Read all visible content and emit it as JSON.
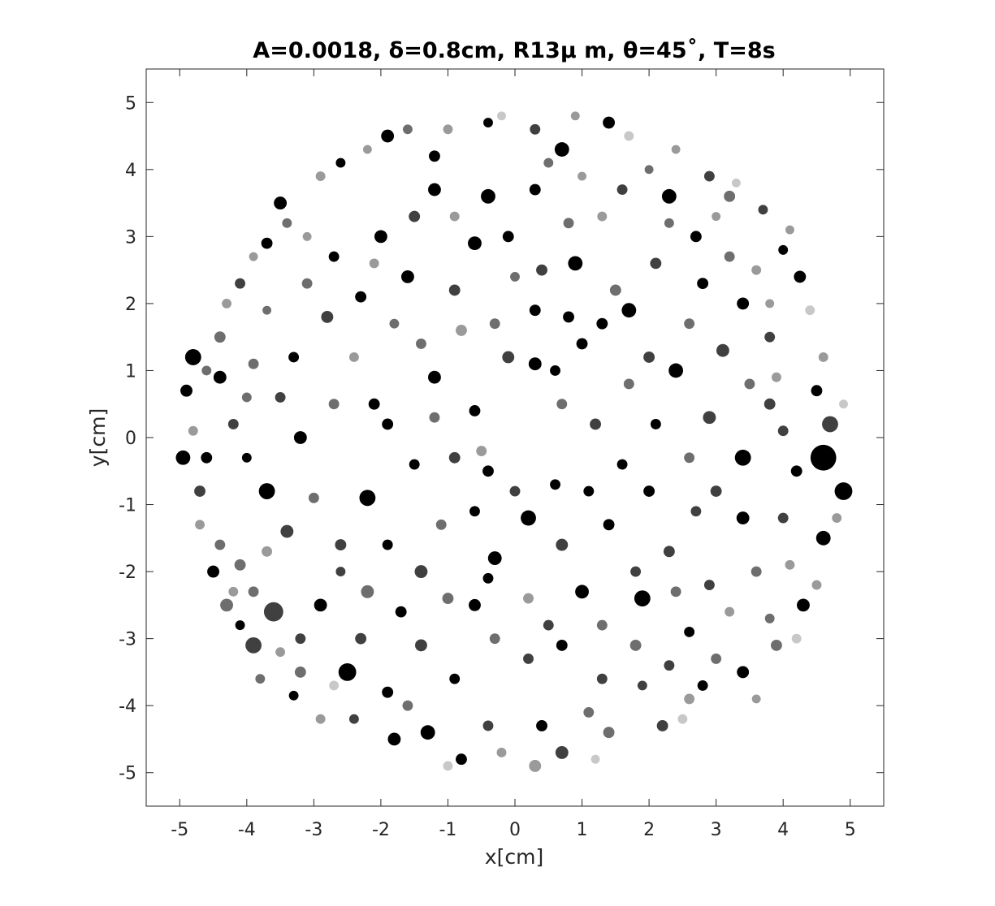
{
  "chart_data": {
    "type": "scatter",
    "title": "A=0.0018, δ=0.8cm, R13μ m, θ=45˚, T=8s",
    "xlabel": "x[cm]",
    "ylabel": "y[cm]",
    "xlim": [
      -5.5,
      5.5
    ],
    "ylim": [
      -5.5,
      5.5
    ],
    "xticks": [
      -5,
      -4,
      -3,
      -2,
      -1,
      0,
      1,
      2,
      3,
      4,
      5
    ],
    "yticks": [
      -5,
      -4,
      -3,
      -2,
      -1,
      0,
      1,
      2,
      3,
      4,
      5
    ],
    "xtick_labels": [
      "-5",
      "-4",
      "-3",
      "-2",
      "-1",
      "0",
      "1",
      "2",
      "3",
      "4",
      "5"
    ],
    "ytick_labels": [
      "-5",
      "-4",
      "-3",
      "-2",
      "-1",
      "0",
      "1",
      "2",
      "3",
      "4",
      "5"
    ],
    "grid": false,
    "legend": "none",
    "region": {
      "shape": "disk",
      "center": [
        0,
        0
      ],
      "radius": 5.0
    },
    "colormap": [
      "#000000",
      "#404040",
      "#6e6e6e",
      "#9a9a9a",
      "#c8c8c8",
      "#e6e6e6"
    ],
    "points": [
      [
        -4.8,
        1.2,
        2,
        0
      ],
      [
        -4.9,
        0.7,
        1.5,
        0
      ],
      [
        -4.95,
        -0.3,
        1.8,
        0
      ],
      [
        -4.7,
        -0.8,
        1.4,
        1
      ],
      [
        -4.5,
        -2.0,
        1.5,
        0
      ],
      [
        -4.3,
        -2.5,
        1.6,
        2
      ],
      [
        -4.1,
        -2.8,
        1.2,
        0
      ],
      [
        -3.9,
        -3.1,
        2,
        1
      ],
      [
        -3.6,
        -2.6,
        2.4,
        1
      ],
      [
        -3.2,
        -3.5,
        1.4,
        2
      ],
      [
        -3.3,
        -3.85,
        1.2,
        0
      ],
      [
        -2.5,
        -3.5,
        2.2,
        0
      ],
      [
        -1.8,
        -4.5,
        1.6,
        0
      ],
      [
        -1.3,
        -4.4,
        1.8,
        0
      ],
      [
        -0.8,
        -4.8,
        1.4,
        0
      ],
      [
        0.3,
        -4.9,
        1.5,
        3
      ],
      [
        0.7,
        -4.7,
        1.6,
        1
      ],
      [
        1.4,
        -4.4,
        1.4,
        2
      ],
      [
        2.2,
        -4.3,
        1.4,
        1
      ],
      [
        2.8,
        -3.7,
        1.3,
        0
      ],
      [
        3.4,
        -3.5,
        1.5,
        0
      ],
      [
        3.9,
        -3.1,
        1.4,
        2
      ],
      [
        4.3,
        -2.5,
        1.6,
        0
      ],
      [
        4.6,
        -1.5,
        1.8,
        0
      ],
      [
        4.9,
        -0.8,
        2.2,
        0
      ],
      [
        4.6,
        -0.3,
        3.2,
        0
      ],
      [
        4.7,
        0.2,
        2,
        1
      ],
      [
        4.5,
        0.7,
        1.4,
        0
      ],
      [
        4.25,
        2.4,
        1.5,
        0
      ],
      [
        4.0,
        2.8,
        1.2,
        0
      ],
      [
        3.7,
        3.4,
        1.2,
        1
      ],
      [
        3.2,
        3.6,
        1.4,
        2
      ],
      [
        2.9,
        3.9,
        1.3,
        1
      ],
      [
        2.3,
        3.6,
        1.8,
        0
      ],
      [
        1.4,
        4.7,
        1.5,
        0
      ],
      [
        0.7,
        4.3,
        1.8,
        0
      ],
      [
        0.3,
        4.6,
        1.3,
        1
      ],
      [
        -0.4,
        4.7,
        1.2,
        0
      ],
      [
        -1.2,
        4.2,
        1.4,
        0
      ],
      [
        -1.9,
        4.5,
        1.6,
        0
      ],
      [
        -2.6,
        4.1,
        1.2,
        0
      ],
      [
        -3.5,
        3.5,
        1.6,
        0
      ],
      [
        -3.7,
        2.9,
        1.4,
        0
      ],
      [
        -4.1,
        2.3,
        1.3,
        1
      ],
      [
        -4.4,
        1.5,
        1.4,
        2
      ],
      [
        -3.7,
        -0.8,
        2,
        0
      ],
      [
        -3.2,
        0.0,
        1.6,
        0
      ],
      [
        -2.2,
        -0.9,
        2,
        0
      ],
      [
        -1.9,
        0.2,
        1.4,
        0
      ],
      [
        -1.2,
        0.9,
        1.6,
        0
      ],
      [
        -0.6,
        0.4,
        1.4,
        0
      ],
      [
        -0.1,
        1.2,
        1.5,
        1
      ],
      [
        0.3,
        1.1,
        1.6,
        0
      ],
      [
        0.6,
        1.0,
        1.3,
        0
      ],
      [
        1.0,
        1.4,
        1.4,
        0
      ],
      [
        1.7,
        0.8,
        1.3,
        2
      ],
      [
        2.4,
        1.0,
        1.8,
        0
      ],
      [
        2.9,
        0.3,
        1.6,
        1
      ],
      [
        3.4,
        -0.3,
        2,
        0
      ],
      [
        3.8,
        0.5,
        1.4,
        1
      ],
      [
        -0.9,
        -0.3,
        1.4,
        1
      ],
      [
        -0.4,
        -0.5,
        1.4,
        0
      ],
      [
        0.2,
        -1.2,
        1.9,
        0
      ],
      [
        0.7,
        -1.6,
        1.5,
        1
      ],
      [
        1.0,
        -2.3,
        1.7,
        0
      ],
      [
        1.4,
        -1.3,
        1.4,
        0
      ],
      [
        1.9,
        -2.4,
        2,
        0
      ],
      [
        2.3,
        -1.7,
        1.4,
        1
      ],
      [
        2.6,
        -2.9,
        1.3,
        0
      ],
      [
        2.9,
        -2.2,
        1.3,
        1
      ],
      [
        3.4,
        -1.2,
        1.6,
        0
      ],
      [
        3.6,
        -2.0,
        1.3,
        2
      ],
      [
        -0.3,
        -1.8,
        1.7,
        0
      ],
      [
        -0.6,
        -2.5,
        1.5,
        0
      ],
      [
        -1.4,
        -2.0,
        1.6,
        1
      ],
      [
        -1.7,
        -2.6,
        1.4,
        0
      ],
      [
        -2.2,
        -2.3,
        1.6,
        2
      ],
      [
        -2.9,
        -2.5,
        1.6,
        0
      ],
      [
        -3.4,
        -1.4,
        1.6,
        1
      ],
      [
        -4.1,
        -1.9,
        1.4,
        2
      ],
      [
        -4.6,
        -0.3,
        1.4,
        0
      ],
      [
        -4.2,
        0.2,
        1.3,
        1
      ],
      [
        -4.4,
        0.9,
        1.6,
        0
      ],
      [
        -3.9,
        1.1,
        1.3,
        2
      ],
      [
        -3.3,
        1.2,
        1.3,
        0
      ],
      [
        -2.8,
        1.8,
        1.5,
        1
      ],
      [
        -2.3,
        2.1,
        1.4,
        0
      ],
      [
        -1.6,
        2.4,
        1.6,
        0
      ],
      [
        -0.9,
        2.2,
        1.4,
        1
      ],
      [
        -0.6,
        2.9,
        1.7,
        0
      ],
      [
        -0.1,
        3.0,
        1.4,
        0
      ],
      [
        0.4,
        2.5,
        1.4,
        1
      ],
      [
        0.9,
        2.6,
        1.8,
        0
      ],
      [
        1.5,
        2.2,
        1.4,
        2
      ],
      [
        1.7,
        1.9,
        1.8,
        0
      ],
      [
        2.1,
        2.6,
        1.4,
        1
      ],
      [
        2.8,
        2.3,
        1.4,
        0
      ],
      [
        3.1,
        1.3,
        1.6,
        1
      ],
      [
        3.4,
        2.0,
        1.5,
        0
      ],
      [
        3.8,
        1.5,
        1.3,
        1
      ],
      [
        -3.2,
        -3.0,
        1.3,
        1
      ],
      [
        -2.3,
        -3.0,
        1.4,
        1
      ],
      [
        -1.9,
        -3.8,
        1.4,
        0
      ],
      [
        -1.4,
        -3.1,
        1.5,
        1
      ],
      [
        -0.9,
        -3.6,
        1.3,
        0
      ],
      [
        -0.3,
        -3.0,
        1.3,
        2
      ],
      [
        0.2,
        -3.3,
        1.3,
        1
      ],
      [
        0.7,
        -3.1,
        1.4,
        0
      ],
      [
        1.3,
        -3.6,
        1.3,
        1
      ],
      [
        1.8,
        -3.1,
        1.4,
        2
      ],
      [
        2.3,
        -3.4,
        1.3,
        1
      ],
      [
        3.0,
        -3.3,
        1.3,
        2
      ],
      [
        -2.4,
        -4.2,
        1.2,
        1
      ],
      [
        -1.6,
        -4.0,
        1.3,
        2
      ],
      [
        -0.4,
        -4.3,
        1.3,
        1
      ],
      [
        0.4,
        -4.3,
        1.4,
        0
      ],
      [
        1.1,
        -4.1,
        1.3,
        2
      ],
      [
        1.9,
        -3.7,
        1.2,
        1
      ],
      [
        2.6,
        -3.9,
        1.3,
        3
      ],
      [
        -3.8,
        -3.6,
        1.2,
        2
      ],
      [
        -2.9,
        -4.2,
        1.2,
        3
      ],
      [
        -1.0,
        -4.9,
        1.2,
        4
      ],
      [
        -0.2,
        -4.7,
        1.2,
        3
      ],
      [
        1.2,
        -4.8,
        1.1,
        4
      ],
      [
        2.5,
        -4.2,
        1.2,
        4
      ],
      [
        3.6,
        -3.9,
        1.1,
        3
      ],
      [
        4.2,
        -3.0,
        1.2,
        4
      ],
      [
        4.5,
        -2.2,
        1.2,
        3
      ],
      [
        4.8,
        -1.2,
        1.2,
        3
      ],
      [
        4.9,
        0.5,
        1.1,
        4
      ],
      [
        4.6,
        1.2,
        1.2,
        3
      ],
      [
        4.4,
        1.9,
        1.2,
        4
      ],
      [
        4.1,
        3.1,
        1.1,
        3
      ],
      [
        3.3,
        3.8,
        1.1,
        4
      ],
      [
        2.4,
        4.3,
        1.1,
        3
      ],
      [
        1.7,
        4.5,
        1.2,
        4
      ],
      [
        0.9,
        4.8,
        1.1,
        3
      ],
      [
        -0.2,
        4.8,
        1.1,
        4
      ],
      [
        -1.0,
        4.6,
        1.2,
        3
      ],
      [
        -1.6,
        4.6,
        1.2,
        2
      ],
      [
        -2.2,
        4.3,
        1.1,
        3
      ],
      [
        -2.9,
        3.9,
        1.2,
        3
      ],
      [
        -3.4,
        3.2,
        1.2,
        2
      ],
      [
        -3.9,
        2.7,
        1.1,
        3
      ],
      [
        -4.3,
        2.0,
        1.2,
        3
      ],
      [
        -4.6,
        1.0,
        1.2,
        2
      ],
      [
        -4.8,
        0.1,
        1.2,
        3
      ],
      [
        -4.7,
        -1.3,
        1.2,
        3
      ],
      [
        -4.4,
        -1.6,
        1.3,
        2
      ],
      [
        -4.2,
        -2.3,
        1.2,
        3
      ],
      [
        -3.5,
        -3.2,
        1.2,
        3
      ],
      [
        -2.7,
        -3.7,
        1.2,
        4
      ],
      [
        -1.5,
        3.3,
        1.4,
        1
      ],
      [
        -2.0,
        3.0,
        1.6,
        0
      ],
      [
        -2.7,
        2.7,
        1.3,
        0
      ],
      [
        -3.1,
        2.3,
        1.3,
        2
      ],
      [
        -1.2,
        3.7,
        1.6,
        0
      ],
      [
        -0.4,
        3.6,
        1.8,
        0
      ],
      [
        0.3,
        3.7,
        1.4,
        0
      ],
      [
        0.8,
        3.2,
        1.3,
        2
      ],
      [
        1.3,
        3.3,
        1.2,
        3
      ],
      [
        1.6,
        3.7,
        1.3,
        1
      ],
      [
        2.3,
        3.2,
        1.2,
        2
      ],
      [
        2.7,
        3.0,
        1.4,
        0
      ],
      [
        3.2,
        2.7,
        1.3,
        2
      ],
      [
        3.6,
        2.5,
        1.2,
        3
      ],
      [
        -1.4,
        1.4,
        1.3,
        2
      ],
      [
        -0.8,
        1.6,
        1.4,
        3
      ],
      [
        -0.3,
        1.7,
        1.3,
        2
      ],
      [
        0.3,
        1.9,
        1.4,
        0
      ],
      [
        0.8,
        1.8,
        1.4,
        0
      ],
      [
        1.3,
        1.7,
        1.4,
        0
      ],
      [
        2.0,
        1.2,
        1.4,
        1
      ],
      [
        2.6,
        1.7,
        1.3,
        2
      ],
      [
        -2.7,
        0.5,
        1.3,
        2
      ],
      [
        -2.1,
        0.5,
        1.4,
        0
      ],
      [
        -1.5,
        -0.4,
        1.3,
        0
      ],
      [
        -1.2,
        0.3,
        1.3,
        2
      ],
      [
        -0.5,
        -0.2,
        1.3,
        3
      ],
      [
        0.7,
        0.5,
        1.3,
        2
      ],
      [
        1.2,
        0.2,
        1.4,
        1
      ],
      [
        1.6,
        -0.4,
        1.3,
        0
      ],
      [
        2.1,
        0.2,
        1.3,
        0
      ],
      [
        2.6,
        -0.3,
        1.3,
        2
      ],
      [
        3.0,
        -0.8,
        1.4,
        1
      ],
      [
        -3.0,
        -0.9,
        1.3,
        2
      ],
      [
        -2.6,
        -1.6,
        1.4,
        1
      ],
      [
        -1.9,
        -1.6,
        1.3,
        0
      ],
      [
        -1.1,
        -1.3,
        1.3,
        2
      ],
      [
        -0.6,
        -1.1,
        1.3,
        0
      ],
      [
        0.0,
        -0.8,
        1.3,
        1
      ],
      [
        0.6,
        -0.7,
        1.3,
        0
      ],
      [
        1.1,
        -0.8,
        1.3,
        0
      ],
      [
        2.0,
        -0.8,
        1.4,
        0
      ],
      [
        2.7,
        -1.1,
        1.3,
        1
      ],
      [
        -3.7,
        -1.7,
        1.3,
        3
      ],
      [
        -3.9,
        -2.3,
        1.3,
        2
      ],
      [
        -2.6,
        -2.0,
        1.2,
        1
      ],
      [
        -1.0,
        -2.4,
        1.4,
        2
      ],
      [
        -0.4,
        -2.1,
        1.3,
        0
      ],
      [
        0.2,
        -2.4,
        1.3,
        3
      ],
      [
        0.5,
        -2.8,
        1.3,
        1
      ],
      [
        1.3,
        -2.8,
        1.3,
        2
      ],
      [
        1.8,
        -2.0,
        1.3,
        1
      ],
      [
        2.4,
        -2.3,
        1.3,
        2
      ],
      [
        3.2,
        -2.6,
        1.2,
        3
      ],
      [
        3.8,
        -2.7,
        1.2,
        2
      ],
      [
        4.1,
        -1.9,
        1.2,
        3
      ],
      [
        4.0,
        -1.2,
        1.3,
        1
      ],
      [
        4.2,
        -0.5,
        1.4,
        0
      ],
      [
        4.0,
        0.1,
        1.3,
        1
      ],
      [
        3.5,
        0.8,
        1.3,
        2
      ],
      [
        3.9,
        0.9,
        1.2,
        3
      ],
      [
        -4.0,
        -0.3,
        1.2,
        0
      ],
      [
        -3.5,
        0.6,
        1.3,
        1
      ],
      [
        -4.0,
        0.6,
        1.2,
        2
      ],
      [
        -2.4,
        1.2,
        1.2,
        3
      ],
      [
        -1.8,
        1.7,
        1.2,
        2
      ],
      [
        -2.1,
        2.6,
        1.2,
        3
      ],
      [
        0.0,
        2.4,
        1.2,
        2
      ],
      [
        -0.9,
        3.3,
        1.2,
        3
      ],
      [
        0.5,
        4.1,
        1.2,
        2
      ],
      [
        1.0,
        3.9,
        1.1,
        3
      ],
      [
        -3.1,
        3.0,
        1.1,
        3
      ],
      [
        -3.7,
        1.9,
        1.1,
        2
      ],
      [
        3.0,
        3.3,
        1.1,
        3
      ],
      [
        2.0,
        4.0,
        1.1,
        2
      ],
      [
        3.8,
        2.0,
        1.1,
        3
      ]
    ]
  }
}
